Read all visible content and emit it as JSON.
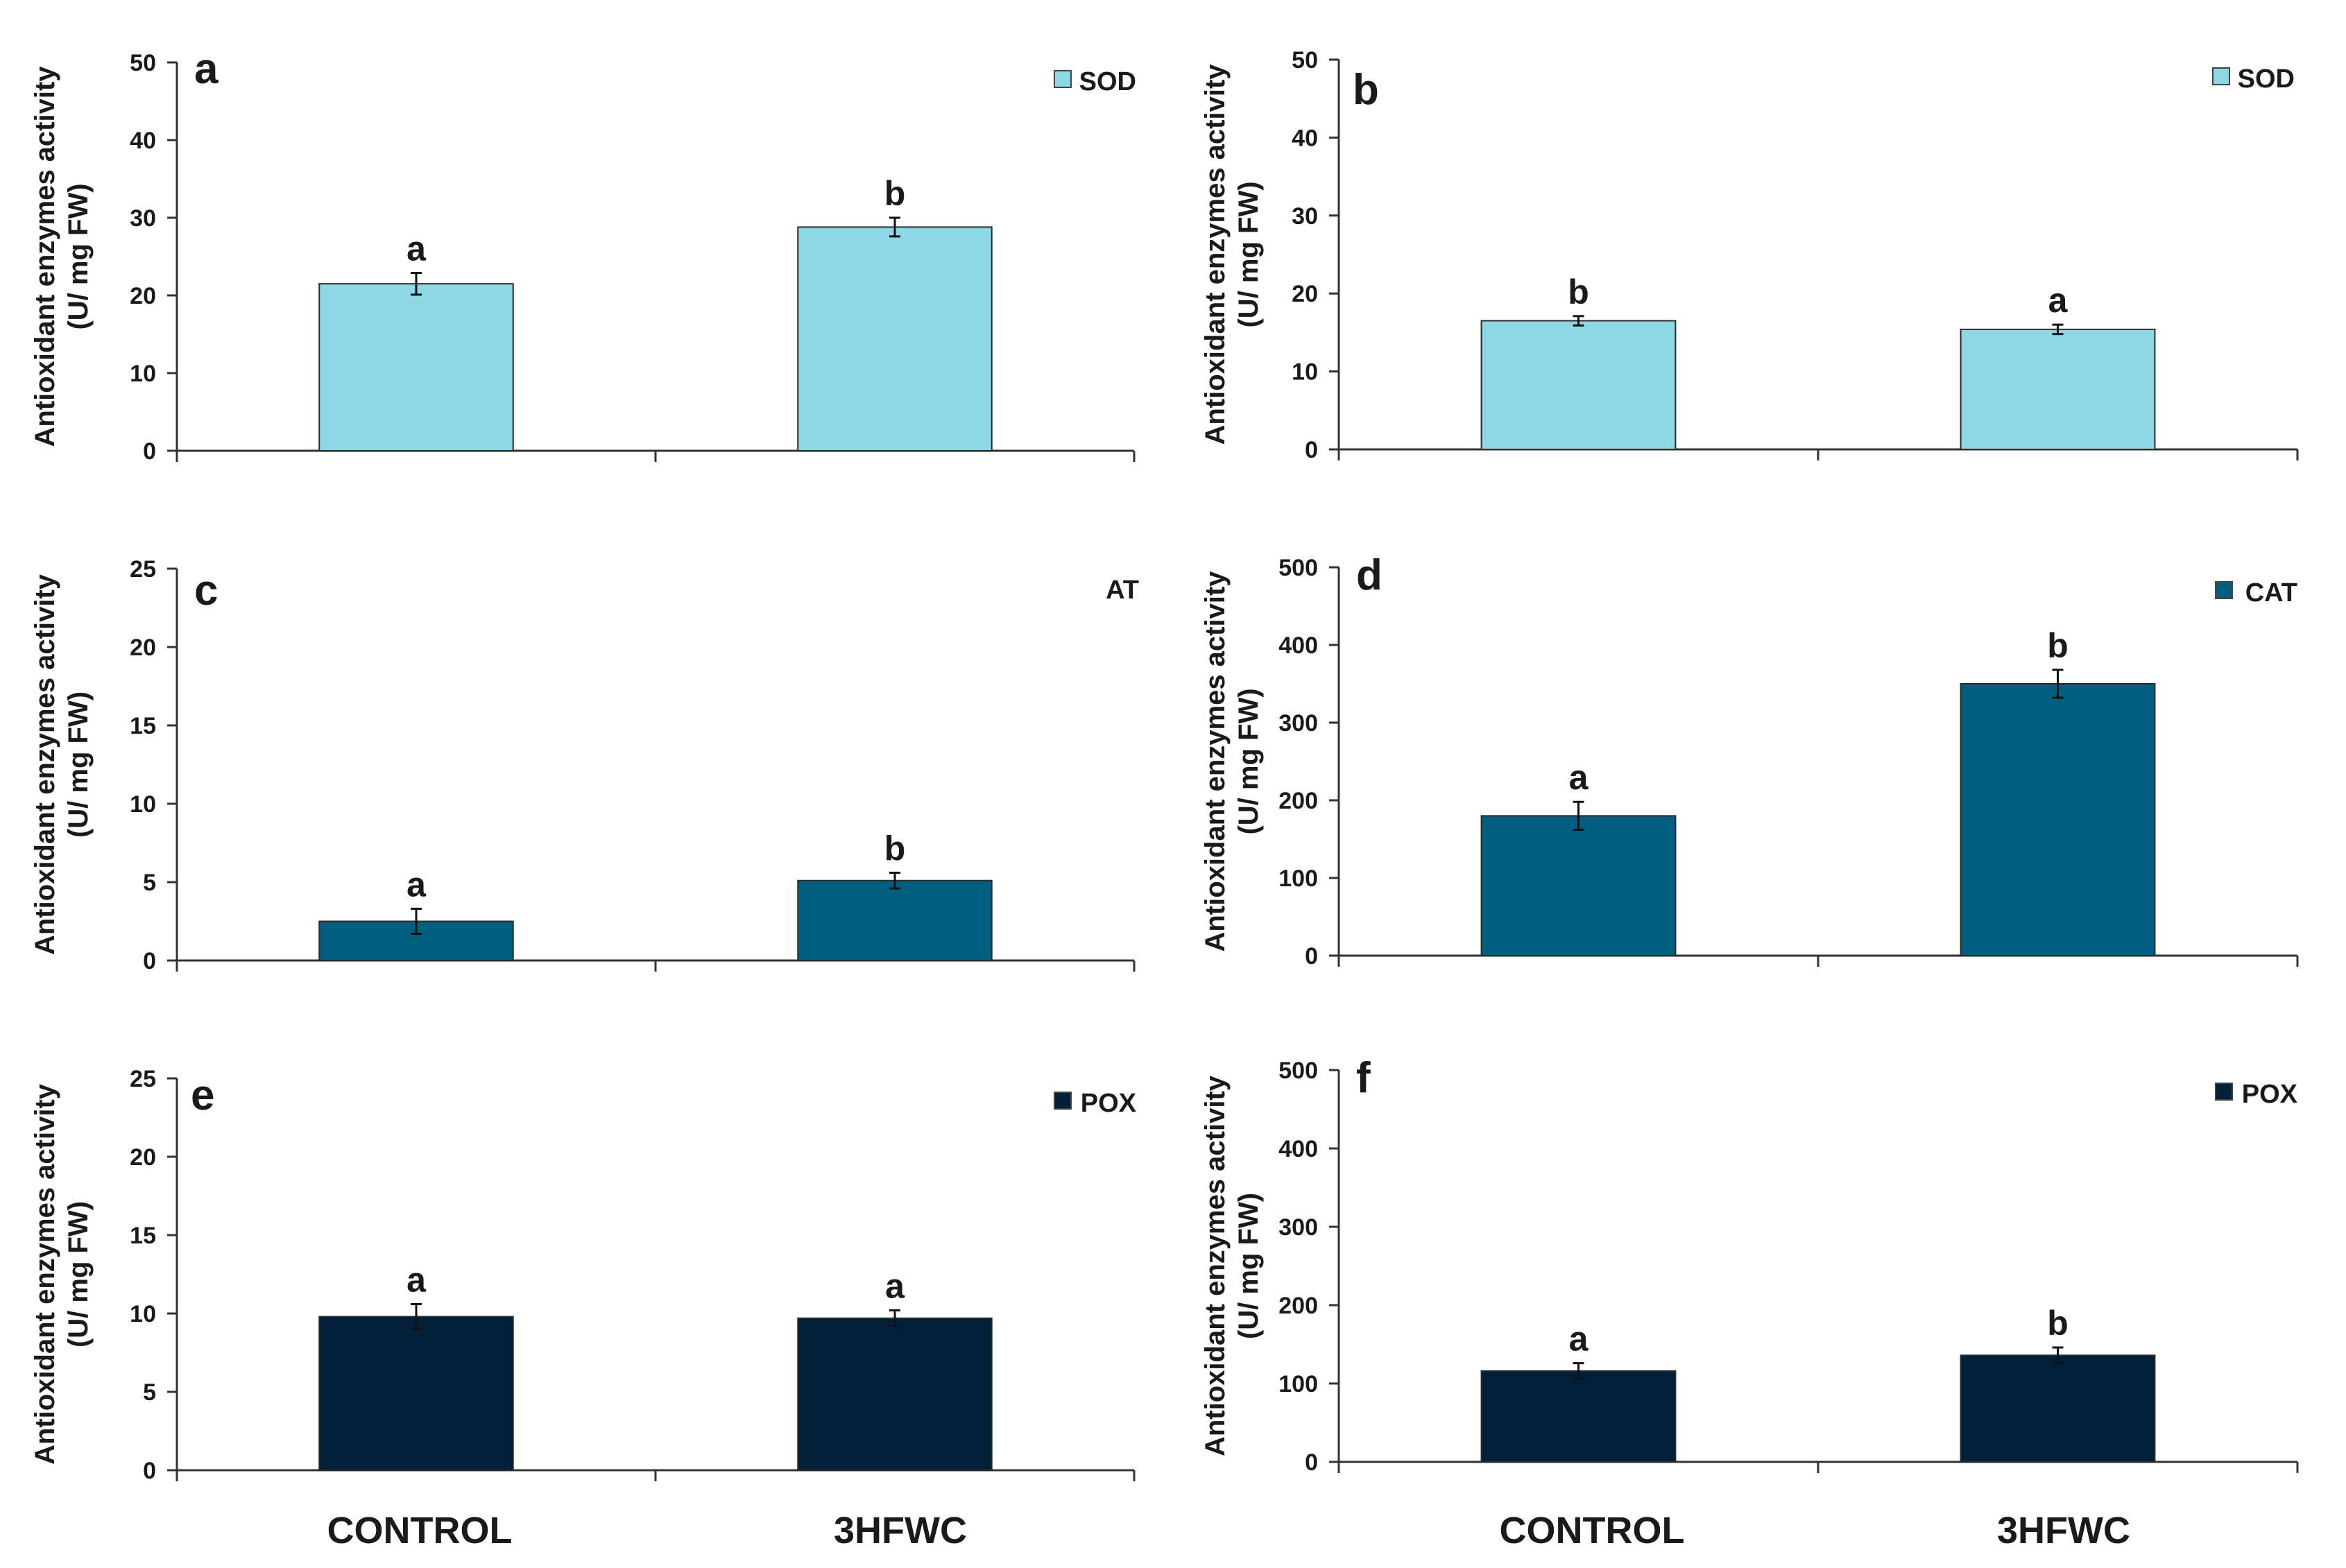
{
  "figure": {
    "x_categories": [
      "CONTROL",
      "3HFWC"
    ]
  },
  "chart_data": [
    {
      "panel": "a",
      "type": "bar",
      "ylabel_line1": "Antioxidant enzymes activity",
      "ylabel_line2": "(U/ mg FW)",
      "legend": "SOD",
      "legend_swatch": true,
      "color": "#8DD8E6",
      "categories": [
        "CONTROL",
        "3HFWC"
      ],
      "values": [
        21.5,
        28.8
      ],
      "errors": [
        1.4,
        1.2
      ],
      "significance": [
        "a",
        "b"
      ],
      "ylim": [
        0,
        50
      ],
      "yticks": [
        "0",
        "10",
        "20",
        "30",
        "40",
        "50"
      ]
    },
    {
      "panel": "b",
      "type": "bar",
      "ylabel_line1": "Antioxidant enzymes activity",
      "ylabel_line2": "(U/ mg FW)",
      "legend": "SOD",
      "legend_swatch": true,
      "color": "#8DD8E6",
      "categories": [
        "CONTROL",
        "3HFWC"
      ],
      "values": [
        16.5,
        15.4
      ],
      "errors": [
        0.6,
        0.6
      ],
      "significance": [
        "b",
        "a"
      ],
      "ylim": [
        0,
        50
      ],
      "yticks": [
        "0",
        "10",
        "20",
        "30",
        "40",
        "50"
      ]
    },
    {
      "panel": "c",
      "type": "bar",
      "ylabel_line1": "Antioxidant enzymes activity",
      "ylabel_line2": "(U/ mg FW)",
      "legend": "AT",
      "legend_swatch": false,
      "color": "#005F80",
      "categories": [
        "CONTROL",
        "3HFWC"
      ],
      "values": [
        2.5,
        5.1
      ],
      "errors": [
        0.8,
        0.5
      ],
      "significance": [
        "a",
        "b"
      ],
      "ylim": [
        0,
        25
      ],
      "yticks": [
        "0",
        "5",
        "10",
        "15",
        "20",
        "25"
      ]
    },
    {
      "panel": "d",
      "type": "bar",
      "ylabel_line1": "Antioxidant enzymes activity",
      "ylabel_line2": "(U/ mg FW)",
      "legend": "CAT",
      "legend_swatch": true,
      "color": "#005F80",
      "categories": [
        "CONTROL",
        "3HFWC"
      ],
      "values": [
        180,
        350
      ],
      "errors": [
        18,
        18
      ],
      "significance": [
        "a",
        "b"
      ],
      "ylim": [
        0,
        500
      ],
      "yticks": [
        "0",
        "100",
        "200",
        "300",
        "400",
        "500"
      ]
    },
    {
      "panel": "e",
      "type": "bar",
      "ylabel_line1": "Antioxidant enzymes activity",
      "ylabel_line2": "(U/ mg FW)",
      "legend": "POX",
      "legend_swatch": true,
      "color": "#00203A",
      "categories": [
        "CONTROL",
        "3HFWC"
      ],
      "values": [
        9.8,
        9.7
      ],
      "errors": [
        0.8,
        0.5
      ],
      "significance": [
        "a",
        "a"
      ],
      "ylim": [
        0,
        25
      ],
      "yticks": [
        "0",
        "5",
        "10",
        "15",
        "20",
        "25"
      ]
    },
    {
      "panel": "f",
      "type": "bar",
      "ylabel_line1": "Antioxidant enzymes activity",
      "ylabel_line2": "(U/ mg FW)",
      "legend": "POX",
      "legend_swatch": true,
      "color": "#00203A",
      "categories": [
        "CONTROL",
        "3HFWC"
      ],
      "values": [
        116,
        136
      ],
      "errors": [
        10,
        10
      ],
      "significance": [
        "a",
        "b"
      ],
      "ylim": [
        0,
        500
      ],
      "yticks": [
        "0",
        "100",
        "200",
        "300",
        "400",
        "500"
      ]
    }
  ]
}
